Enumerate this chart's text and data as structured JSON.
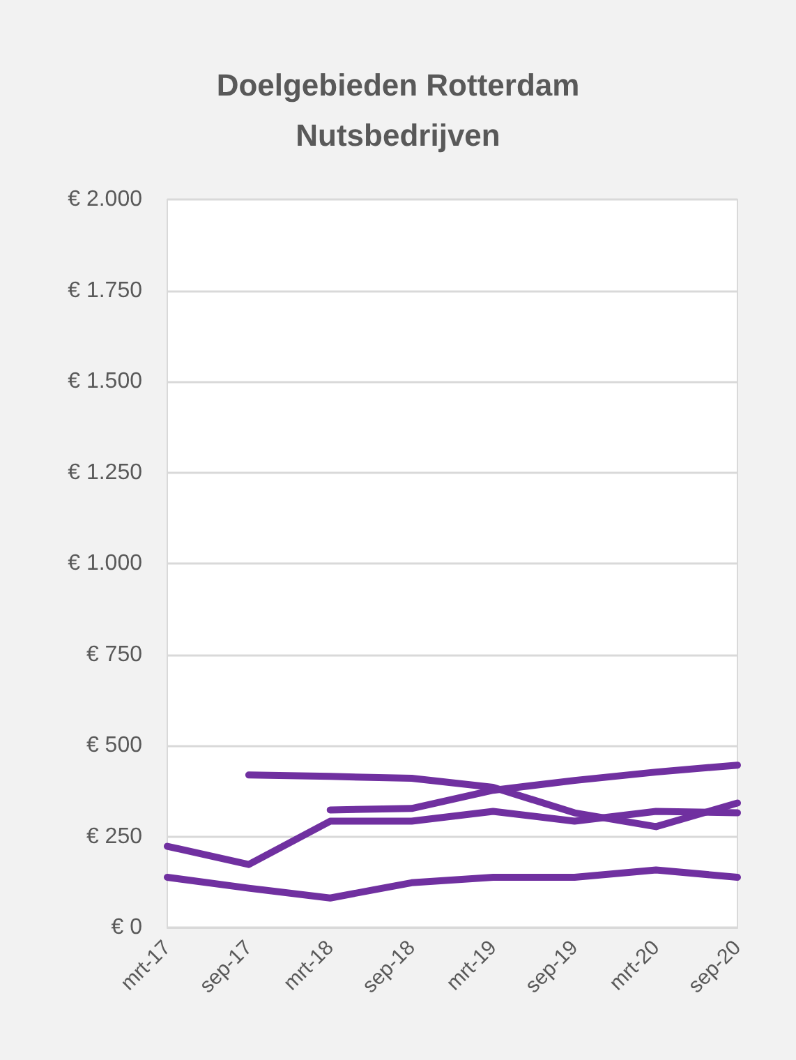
{
  "chart_data": {
    "type": "line",
    "title": "Doelgebieden Rotterdam\nNutsbedrijven",
    "categories": [
      "mrt-17",
      "sep-17",
      "mrt-18",
      "sep-18",
      "mrt-19",
      "sep-19",
      "mrt-20",
      "sep-20"
    ],
    "series": [
      {
        "color": "#7030a0",
        "values": [
          null,
          419,
          415,
          410,
          385,
          315,
          277,
          342
        ]
      },
      {
        "color": "#7030a0",
        "values": [
          null,
          null,
          323,
          327,
          377,
          404,
          427,
          446
        ]
      },
      {
        "color": "#7030a0",
        "values": [
          223,
          173,
          292,
          292,
          319,
          292,
          319,
          315
        ]
      },
      {
        "color": "#7030a0",
        "values": [
          138,
          108,
          81,
          123,
          138,
          138,
          158,
          138
        ]
      }
    ],
    "ylim": [
      0,
      2000
    ],
    "yticks": [
      {
        "value": 0,
        "label": "€ 0"
      },
      {
        "value": 250,
        "label": "€ 250"
      },
      {
        "value": 500,
        "label": "€ 500"
      },
      {
        "value": 750,
        "label": "€ 750"
      },
      {
        "value": 1000,
        "label": "€ 1.000"
      },
      {
        "value": 1250,
        "label": "€ 1.250"
      },
      {
        "value": 1500,
        "label": "€ 1.500"
      },
      {
        "value": 1750,
        "label": "€ 1.750"
      },
      {
        "value": 2000,
        "label": "€ 2.000"
      }
    ],
    "grid": "y",
    "marker": "none",
    "line_style": "solid"
  }
}
